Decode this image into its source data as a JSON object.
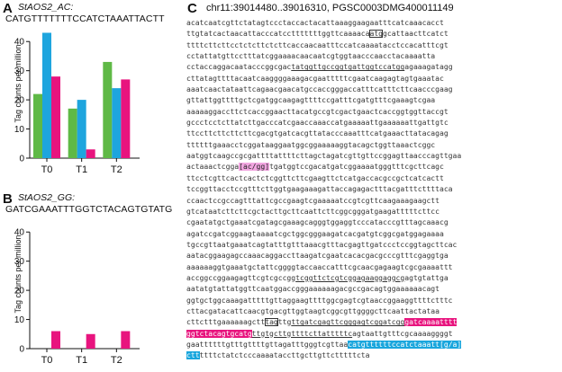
{
  "panelA": {
    "letter": "A",
    "gene": "StAOS2_AC:",
    "sequence": "CATGTTTTTTTCCATCTAAATTACTT",
    "ylabel": "Tag counts per million",
    "chart_data": {
      "type": "bar",
      "categories": [
        "T0",
        "T1",
        "T2"
      ],
      "series": [
        {
          "color": "#5fb946",
          "values": [
            22,
            17,
            33
          ]
        },
        {
          "color": "#1ea5de",
          "values": [
            43,
            20,
            24
          ]
        },
        {
          "color": "#e8147e",
          "values": [
            28,
            3,
            27
          ]
        }
      ],
      "yticks": [
        0,
        10,
        20,
        30,
        40
      ],
      "ylim": [
        0,
        45
      ]
    }
  },
  "panelB": {
    "letter": "B",
    "gene": "StAOS2_GG:",
    "sequence": "GATCGAAATTTGGTCTACAGTGTATG",
    "ylabel": "Tag counts per million",
    "chart_data": {
      "type": "bar",
      "categories": [
        "T0",
        "T1",
        "T2"
      ],
      "series": [
        {
          "color": "#5fb946",
          "values": [
            0,
            0,
            0
          ]
        },
        {
          "color": "#1ea5de",
          "values": [
            0,
            0,
            0
          ]
        },
        {
          "color": "#e8147e",
          "values": [
            6,
            5,
            6
          ]
        }
      ],
      "yticks": [
        0,
        10,
        20,
        30,
        40
      ],
      "ylim": [
        0,
        45
      ]
    }
  },
  "panelC": {
    "letter": "C",
    "title": "chr11:39014480..39016310, PGSC0003DMG400011149",
    "colors": {
      "pink": "#e8147e",
      "mauve": "#f2a6e1",
      "blue": "#19a6dd"
    },
    "lines": [
      [
        {
          "t": "acatcaatcgttctatagtccctaccactacattaaaggaagaatttcatcaaacacct"
        }
      ],
      [
        {
          "t": "ttgtatcactaacattacccatcctttttttggttcaaaaca"
        },
        {
          "t": "atg",
          "c": "box"
        },
        {
          "t": "gcattaacttcatct"
        }
      ],
      [
        {
          "t": "ttttcttcttcctctcttctcttcaccaacaatttccatcaaaatacctccacatttcgt"
        }
      ],
      [
        {
          "t": "cctattatgttcctttatcggaaaacaacaatcgtggtaacccaacctacaaaatta"
        }
      ],
      [
        {
          "t": "cctaccaggacaatacccggcgac"
        },
        {
          "t": "tatggttgccggtgattggtccatgg",
          "c": "ul"
        },
        {
          "t": "agaaagatagg"
        }
      ],
      [
        {
          "t": "cttatagttttacaatcaaggggaaagacgaatttttcgaatcaagagtagtgaaatac"
        }
      ],
      [
        {
          "t": "aaatcaactataattcagaacgaacatgccaccgggaccatttcatttcttcaacccgaag"
        }
      ],
      [
        {
          "t": "gttattggttttgctcgatggcaagagttttccgatttcgatgtttcgaaagtcgaa"
        }
      ],
      [
        {
          "t": "aaaaaggaccttctcaccggaacttacatgccgtcgactgaactcaccggtggttaccgt"
        }
      ],
      [
        {
          "t": "gccctcctcttatcttgacccatcgaaccaaaccatgaaaaattgaaaaaattgattgtc"
        }
      ],
      [
        {
          "t": "ttccttcttcttcttcgacgtgatcacgttatacccaaatttcatgaaacttatacagag"
        }
      ],
      [
        {
          "t": "ttttttgaaacctcggataaggaatggcggaaaaaggtacagctggttaaactcggc"
        }
      ],
      [
        {
          "t": "aatggtcaagccgcgattttattttcttagctagatcgttgttccggagttaacccagttgaa"
        }
      ],
      [
        {
          "t": "actaaactcgga"
        },
        {
          "t": "[ac/gg]",
          "c": "mauve"
        },
        {
          "t": "tgatggtccgacatgatcggaaaatgggtttcgcttcagc"
        }
      ],
      [
        {
          "t": "ttcctcgttcactcactctcggttcttcgaagttctcatgaccacgccgctcatcactt"
        }
      ],
      [
        {
          "t": "tccggttacctccgtttcttggtgaagaaagattaccagagactttacgatttcttttaca"
        }
      ],
      [
        {
          "t": "ccaactccgccagtttattcgccgaagtcgaaaaatccgtcgttcaagaaagaagctt"
        }
      ],
      [
        {
          "t": "gtcataatcttcttcgctacttgcttcaattcttcggcgggatgaagatttttcttcc"
        }
      ],
      [
        {
          "t": "cgaatatgctgaaatcgatagcgaaagcagggtggaggtcccatacccgtttagcaaacg"
        }
      ],
      [
        {
          "t": "agatccgatcggaagtaaaatcgctggcgggaagatcacgatgtcggcgatggagaaaa"
        }
      ],
      [
        {
          "t": "tgccgttaatgaaatcagtatttgtttaaacgtttacgagttgatccctccggtagcttcac"
        }
      ],
      [
        {
          "t": "aatacggaagagccaaacaggaccttaagatcgaatcacacgacgcccgtttcgaggtga"
        }
      ],
      [
        {
          "t": "aaaaaaggtgaaatgctattcggggtaccaaccatttcgcaacgagaagtcgcgaaaattt"
        }
      ],
      [
        {
          "t": "accggccggaagagttcgtcgccgg"
        },
        {
          "t": "tcggttctcgtcggagaaggaggcg",
          "c": "ul"
        },
        {
          "t": "agtgtattga"
        }
      ],
      [
        {
          "t": "aatatgtattatggttcaatggaccgggaaaaaagacgccgacagtggaaaaaacagt"
        }
      ],
      [
        {
          "t": "ggtgctggcaaagatttttgttaggaagttttggcgagtcgtaaccggaaggttttctttc"
        }
      ],
      [
        {
          "t": "cttacgatacattcaacgtgacgttggtaagtcggcgttggggcttcaattactataa"
        }
      ],
      [
        {
          "t": "cttctttgaaaaaagctt"
        },
        {
          "t": "tag",
          "c": "box"
        },
        {
          "t": "ttg"
        },
        {
          "t": "ttgatcgagttcgggagtcggatcgg",
          "c": "ul"
        },
        {
          "t": "gatcaaaatttt",
          "c": "pink"
        }
      ],
      [
        {
          "t": "ggtctacagtgcatg",
          "c": "pink"
        },
        {
          "t": "ttgtgcttgttttcttatttttc",
          "c": "ul"
        },
        {
          "t": "agtaattgtttcgcaaaaggggt"
        }
      ],
      [
        {
          "t": "gaattttttgtttgttttgttagatttgggtcgttaa"
        },
        {
          "t": "catgttttttccatctaaatt[g/a]",
          "c": "blue"
        }
      ],
      [
        {
          "t": "ctt",
          "c": "blue"
        },
        {
          "t": "ttttctatctcccaaaataccttgcttgttctttttcta"
        }
      ]
    ]
  }
}
